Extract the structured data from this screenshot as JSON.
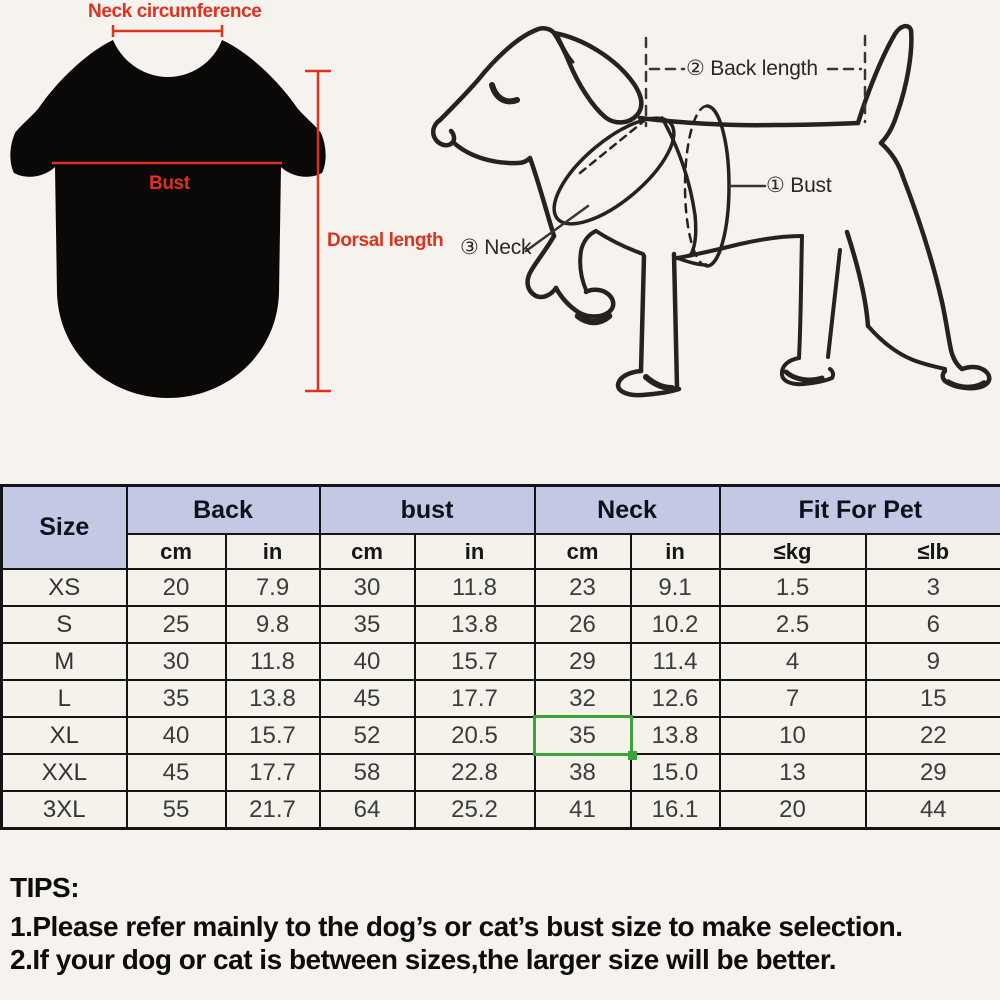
{
  "page": {
    "background": "#f6f3ee"
  },
  "shirt_diagram": {
    "shirt_color": "#0b0908",
    "accent_color": "#e0301e",
    "labels": {
      "neck_circumference": "Neck circumference",
      "bust": "Bust",
      "dorsal_length": "Dorsal length"
    }
  },
  "dog_diagram": {
    "line_color": "#272220",
    "labels": {
      "back_length": "② Back length",
      "bust": "① Bust",
      "neck": "③ Neck"
    }
  },
  "size_table": {
    "header_bg": "#c3c9e5",
    "highlight_color": "#3ca23a",
    "header": {
      "size": "Size",
      "groups": [
        {
          "label": "Back",
          "sub": [
            "cm",
            "in"
          ]
        },
        {
          "label": "bust",
          "sub": [
            "cm",
            "in"
          ]
        },
        {
          "label": "Neck",
          "sub": [
            "cm",
            "in"
          ]
        },
        {
          "label": "Fit For Pet",
          "sub": [
            "≤kg",
            "≤lb"
          ]
        }
      ]
    },
    "rows": [
      {
        "size": "XS",
        "values": [
          "20",
          "7.9",
          "30",
          "11.8",
          "23",
          "9.1",
          "1.5",
          "3"
        ]
      },
      {
        "size": "S",
        "values": [
          "25",
          "9.8",
          "35",
          "13.8",
          "26",
          "10.2",
          "2.5",
          "6"
        ]
      },
      {
        "size": "M",
        "values": [
          "30",
          "11.8",
          "40",
          "15.7",
          "29",
          "11.4",
          "4",
          "9"
        ]
      },
      {
        "size": "L",
        "values": [
          "35",
          "13.8",
          "45",
          "17.7",
          "32",
          "12.6",
          "7",
          "15"
        ]
      },
      {
        "size": "XL",
        "values": [
          "40",
          "15.7",
          "52",
          "20.5",
          "35",
          "13.8",
          "10",
          "22"
        ]
      },
      {
        "size": "XXL",
        "values": [
          "45",
          "17.7",
          "58",
          "22.8",
          "38",
          "15.0",
          "13",
          "29"
        ]
      },
      {
        "size": "3XL",
        "values": [
          "55",
          "21.7",
          "64",
          "25.2",
          "41",
          "16.1",
          "20",
          "44"
        ]
      }
    ],
    "highlight": {
      "row": "XL",
      "value_index": 4
    }
  },
  "tips": {
    "title": "TIPS:",
    "lines": [
      "1.Please refer mainly to the dog’s or cat’s bust size to make selection.",
      "2.If your dog or cat is between sizes,the larger size will be better."
    ]
  }
}
